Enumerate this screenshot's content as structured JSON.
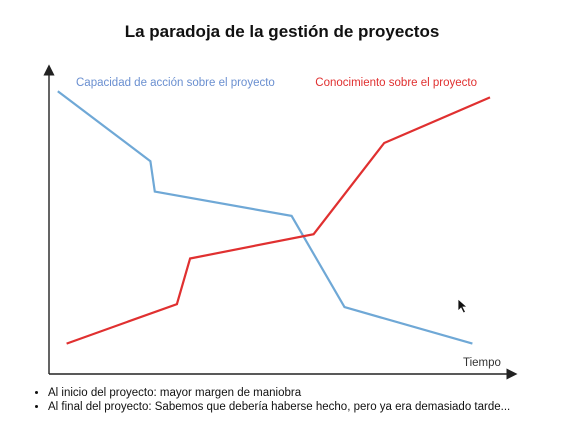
{
  "slide": {
    "title": "La paradoja de la gestión de proyectos",
    "bullets": [
      "Al inicio del proyecto: mayor margen de maniobra",
      "Al final del proyecto: Sabemos que debería haberse hecho, pero ya era demasiado tarde..."
    ]
  },
  "chart_data": {
    "type": "line",
    "title": "La paradoja de la gestión de proyectos",
    "xlabel": "Tiempo",
    "ylabel": "",
    "grid": false,
    "legend": "top",
    "xlim": [
      0,
      10
    ],
    "ylim": [
      0,
      10
    ],
    "series": [
      {
        "name": "Capacidad de acción sobre el proyecto",
        "color": "#6fa8d6",
        "x": [
          0.2,
          2.3,
          2.4,
          5.5,
          6.7,
          9.6
        ],
        "y": [
          9.3,
          7.0,
          6.0,
          5.2,
          2.2,
          1.0
        ]
      },
      {
        "name": "Conocimiento sobre el proyecto",
        "color": "#e03030",
        "x": [
          0.4,
          2.9,
          3.2,
          6.0,
          7.6,
          10.0
        ],
        "y": [
          1.0,
          2.3,
          3.8,
          4.6,
          7.6,
          9.1
        ]
      }
    ]
  }
}
